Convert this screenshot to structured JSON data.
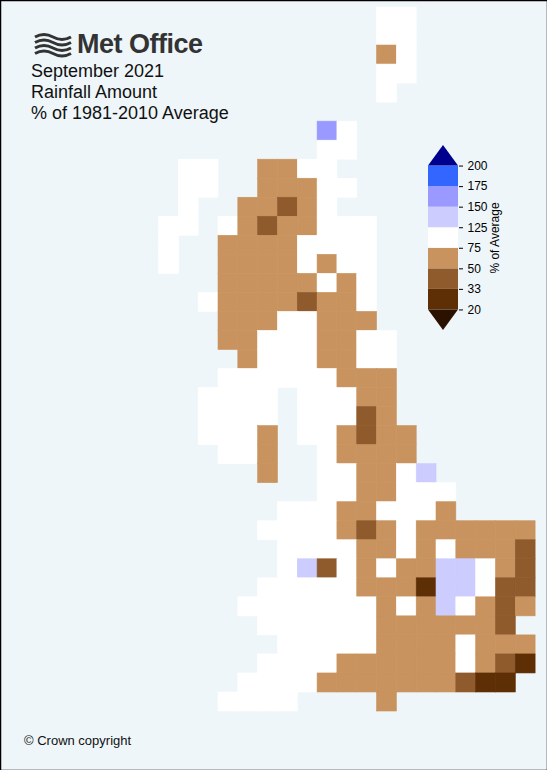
{
  "chart_data": {
    "type": "map",
    "logo": "Met Office",
    "title": "September 2021",
    "subtitle": [
      "Rainfall Amount",
      "% of 1981-2010 Average"
    ],
    "caption": "© Crown copyright",
    "xlim": [
      -11.5,
      2.3
    ],
    "ylim": [
      48.97,
      61.11
    ],
    "tick_labels": false,
    "color_bar": {
      "label": "% of Average",
      "ticks": [
        20,
        33,
        50,
        75,
        125,
        150,
        175,
        200
      ],
      "colors": [
        "#2b1100",
        "#5e2e05",
        "#8f5a2c",
        "#c8935e",
        "#ffffff",
        "#ccccff",
        "#9999ff",
        "#3366ff",
        "#00008f"
      ]
    },
    "grid": {
      "lon0": -8.0,
      "lat0": 61.0,
      "dlon": 0.5,
      "dlat": 0.3,
      "values": [
        [
          null,
          null,
          null,
          null,
          null,
          null,
          null,
          null,
          null,
          null,
          null,
          null,
          100,
          100,
          null,
          null,
          null,
          null,
          null,
          null
        ],
        [
          null,
          null,
          null,
          null,
          null,
          null,
          null,
          null,
          null,
          null,
          null,
          null,
          100,
          100,
          null,
          null,
          null,
          null,
          null,
          null
        ],
        [
          null,
          null,
          null,
          null,
          null,
          null,
          null,
          null,
          null,
          null,
          null,
          null,
          70,
          100,
          null,
          null,
          null,
          null,
          null,
          null
        ],
        [
          null,
          null,
          null,
          null,
          null,
          null,
          null,
          null,
          null,
          null,
          null,
          null,
          100,
          100,
          null,
          null,
          null,
          null,
          null,
          null
        ],
        [
          null,
          null,
          null,
          null,
          null,
          null,
          null,
          null,
          null,
          null,
          null,
          null,
          100,
          null,
          null,
          null,
          null,
          null,
          null,
          null
        ],
        [
          null,
          null,
          null,
          null,
          null,
          null,
          null,
          null,
          null,
          null,
          null,
          null,
          null,
          null,
          null,
          null,
          null,
          null,
          null,
          null
        ],
        [
          null,
          null,
          null,
          null,
          null,
          null,
          null,
          null,
          null,
          150,
          100,
          null,
          null,
          null,
          null,
          null,
          null,
          null,
          null,
          null
        ],
        [
          null,
          null,
          null,
          null,
          null,
          null,
          null,
          null,
          null,
          100,
          100,
          null,
          null,
          null,
          null,
          null,
          null,
          null,
          null,
          null
        ],
        [
          null,
          null,
          100,
          100,
          null,
          null,
          70,
          65,
          100,
          100,
          null,
          null,
          null,
          null,
          null,
          null,
          null,
          null,
          null,
          null
        ],
        [
          null,
          null,
          100,
          100,
          null,
          null,
          65,
          65,
          65,
          100,
          100,
          null,
          null,
          null,
          null,
          null,
          null,
          null,
          null,
          null
        ],
        [
          null,
          null,
          100,
          null,
          null,
          65,
          65,
          45,
          65,
          100,
          null,
          null,
          null,
          null,
          null,
          null,
          null,
          null,
          null,
          null
        ],
        [
          null,
          100,
          100,
          null,
          100,
          65,
          45,
          65,
          65,
          100,
          100,
          100,
          null,
          null,
          null,
          null,
          null,
          null,
          null,
          null
        ],
        [
          null,
          100,
          null,
          null,
          65,
          65,
          65,
          65,
          100,
          100,
          100,
          100,
          null,
          null,
          null,
          null,
          null,
          null,
          null,
          null
        ],
        [
          null,
          100,
          null,
          null,
          65,
          65,
          65,
          65,
          100,
          70,
          100,
          100,
          null,
          null,
          null,
          null,
          null,
          null,
          null,
          null
        ],
        [
          null,
          null,
          null,
          null,
          65,
          65,
          65,
          65,
          65,
          100,
          65,
          100,
          null,
          null,
          null,
          null,
          null,
          null,
          null,
          null
        ],
        [
          null,
          null,
          null,
          100,
          65,
          65,
          65,
          65,
          45,
          65,
          65,
          100,
          null,
          null,
          null,
          null,
          null,
          null,
          null,
          null
        ],
        [
          null,
          null,
          null,
          null,
          65,
          65,
          65,
          100,
          100,
          65,
          65,
          70,
          null,
          null,
          null,
          null,
          null,
          null,
          null,
          null
        ],
        [
          null,
          null,
          null,
          null,
          65,
          65,
          100,
          100,
          100,
          65,
          65,
          100,
          100,
          null,
          null,
          null,
          null,
          null,
          null,
          null
        ],
        [
          null,
          null,
          null,
          null,
          null,
          65,
          100,
          100,
          100,
          65,
          65,
          100,
          100,
          null,
          null,
          null,
          null,
          null,
          null,
          null
        ],
        [
          null,
          null,
          null,
          null,
          100,
          100,
          100,
          100,
          100,
          100,
          65,
          65,
          65,
          null,
          null,
          null,
          null,
          null,
          null,
          null
        ],
        [
          null,
          null,
          null,
          100,
          100,
          100,
          100,
          null,
          100,
          100,
          100,
          65,
          65,
          null,
          null,
          null,
          null,
          null,
          null,
          null
        ],
        [
          null,
          null,
          null,
          100,
          100,
          100,
          100,
          null,
          100,
          100,
          100,
          45,
          65,
          null,
          null,
          null,
          null,
          null,
          null,
          null
        ],
        [
          null,
          null,
          null,
          100,
          100,
          100,
          65,
          null,
          100,
          100,
          65,
          45,
          65,
          65,
          null,
          null,
          null,
          null,
          null,
          null
        ],
        [
          null,
          null,
          null,
          null,
          100,
          100,
          65,
          null,
          null,
          100,
          65,
          65,
          65,
          65,
          null,
          null,
          null,
          null,
          null,
          null
        ],
        [
          null,
          null,
          null,
          null,
          null,
          null,
          65,
          null,
          null,
          100,
          100,
          65,
          65,
          100,
          140,
          null,
          null,
          null,
          null,
          null
        ],
        [
          null,
          null,
          null,
          null,
          null,
          null,
          null,
          null,
          null,
          100,
          100,
          65,
          65,
          100,
          100,
          100,
          null,
          null,
          null,
          null
        ],
        [
          null,
          null,
          null,
          null,
          null,
          null,
          null,
          100,
          100,
          100,
          65,
          65,
          100,
          100,
          100,
          65,
          null,
          null,
          null,
          null
        ],
        [
          null,
          null,
          null,
          null,
          null,
          null,
          100,
          100,
          100,
          100,
          65,
          45,
          65,
          100,
          65,
          65,
          65,
          65,
          65,
          65
        ],
        [
          null,
          null,
          null,
          null,
          null,
          null,
          null,
          100,
          100,
          100,
          100,
          65,
          65,
          100,
          65,
          100,
          65,
          65,
          65,
          45
        ],
        [
          null,
          null,
          null,
          null,
          null,
          null,
          null,
          100,
          130,
          45,
          100,
          65,
          100,
          65,
          65,
          130,
          130,
          100,
          65,
          45
        ],
        [
          null,
          null,
          null,
          null,
          null,
          null,
          100,
          100,
          100,
          100,
          100,
          65,
          65,
          65,
          30,
          130,
          130,
          100,
          45,
          45
        ],
        [
          null,
          null,
          null,
          null,
          null,
          100,
          100,
          100,
          100,
          100,
          100,
          100,
          65,
          100,
          65,
          130,
          100,
          65,
          45,
          65
        ],
        [
          null,
          null,
          null,
          null,
          null,
          null,
          100,
          100,
          100,
          100,
          100,
          100,
          65,
          65,
          65,
          65,
          65,
          65,
          45,
          null
        ],
        [
          null,
          null,
          null,
          null,
          null,
          null,
          null,
          100,
          100,
          100,
          100,
          100,
          65,
          65,
          65,
          65,
          100,
          65,
          65,
          65
        ],
        [
          null,
          null,
          null,
          null,
          null,
          null,
          100,
          100,
          100,
          100,
          65,
          65,
          65,
          65,
          65,
          65,
          100,
          65,
          45,
          30
        ],
        [
          null,
          null,
          null,
          null,
          null,
          100,
          100,
          100,
          100,
          65,
          65,
          65,
          65,
          65,
          65,
          65,
          45,
          30,
          30,
          null
        ],
        [
          null,
          null,
          null,
          null,
          100,
          100,
          100,
          100,
          null,
          null,
          null,
          null,
          65,
          null,
          null,
          null,
          null,
          null,
          null,
          null
        ]
      ]
    }
  }
}
